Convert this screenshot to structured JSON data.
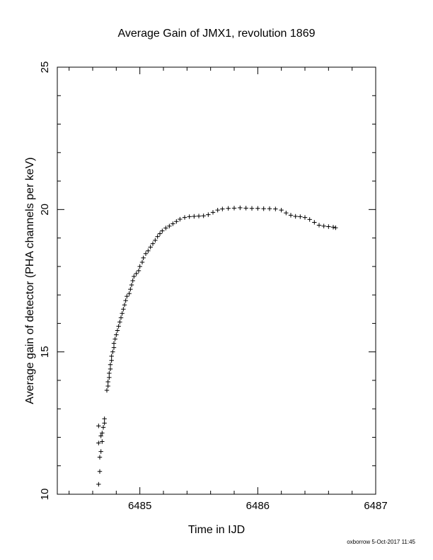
{
  "chart_data": {
    "type": "scatter",
    "title": "Average Gain of JMX1, revolution 1869",
    "xlabel": "Time in IJD",
    "ylabel": "Average gain of detector (PHA channels per keV)",
    "xlim": [
      6484.3,
      6487
    ],
    "ylim": [
      10,
      25
    ],
    "xticks": [
      "6485",
      "6486",
      "6487"
    ],
    "yticks": [
      "10",
      "15",
      "20",
      "25"
    ],
    "grid": false,
    "marker": "+",
    "footer": "oxborrow  5-Oct-2017 11:45",
    "points": [
      [
        6484.65,
        10.35
      ],
      [
        6484.66,
        10.8
      ],
      [
        6484.66,
        11.3
      ],
      [
        6484.67,
        11.5
      ],
      [
        6484.65,
        11.8
      ],
      [
        6484.68,
        11.85
      ],
      [
        6484.67,
        12.05
      ],
      [
        6484.68,
        12.15
      ],
      [
        6484.65,
        12.4
      ],
      [
        6484.69,
        12.35
      ],
      [
        6484.7,
        12.5
      ],
      [
        6484.7,
        12.65
      ],
      [
        6484.72,
        13.65
      ],
      [
        6484.73,
        13.8
      ],
      [
        6484.73,
        13.95
      ],
      [
        6484.74,
        14.1
      ],
      [
        6484.74,
        14.25
      ],
      [
        6484.75,
        14.4
      ],
      [
        6484.75,
        14.55
      ],
      [
        6484.76,
        14.7
      ],
      [
        6484.76,
        14.85
      ],
      [
        6484.77,
        15.0
      ],
      [
        6484.78,
        15.15
      ],
      [
        6484.78,
        15.3
      ],
      [
        6484.79,
        15.45
      ],
      [
        6484.8,
        15.6
      ],
      [
        6484.81,
        15.75
      ],
      [
        6484.82,
        15.9
      ],
      [
        6484.83,
        16.05
      ],
      [
        6484.84,
        16.2
      ],
      [
        6484.85,
        16.35
      ],
      [
        6484.86,
        16.5
      ],
      [
        6484.87,
        16.65
      ],
      [
        6484.88,
        16.8
      ],
      [
        6484.89,
        16.95
      ],
      [
        6484.91,
        17.05
      ],
      [
        6484.92,
        17.2
      ],
      [
        6484.93,
        17.35
      ],
      [
        6484.94,
        17.5
      ],
      [
        6484.95,
        17.65
      ],
      [
        6484.97,
        17.75
      ],
      [
        6484.99,
        17.85
      ],
      [
        6485.0,
        18.0
      ],
      [
        6485.02,
        18.15
      ],
      [
        6485.03,
        18.3
      ],
      [
        6485.05,
        18.45
      ],
      [
        6485.07,
        18.55
      ],
      [
        6485.09,
        18.68
      ],
      [
        6485.11,
        18.8
      ],
      [
        6485.13,
        18.92
      ],
      [
        6485.15,
        19.05
      ],
      [
        6485.17,
        19.15
      ],
      [
        6485.19,
        19.25
      ],
      [
        6485.22,
        19.35
      ],
      [
        6485.25,
        19.42
      ],
      [
        6485.28,
        19.5
      ],
      [
        6485.31,
        19.58
      ],
      [
        6485.34,
        19.66
      ],
      [
        6485.38,
        19.72
      ],
      [
        6485.42,
        19.75
      ],
      [
        6485.46,
        19.76
      ],
      [
        6485.5,
        19.77
      ],
      [
        6485.54,
        19.78
      ],
      [
        6485.58,
        19.82
      ],
      [
        6485.62,
        19.9
      ],
      [
        6485.66,
        19.98
      ],
      [
        6485.7,
        20.02
      ],
      [
        6485.75,
        20.04
      ],
      [
        6485.8,
        20.05
      ],
      [
        6485.85,
        20.06
      ],
      [
        6485.9,
        20.05
      ],
      [
        6485.95,
        20.04
      ],
      [
        6486.0,
        20.04
      ],
      [
        6486.05,
        20.03
      ],
      [
        6486.1,
        20.03
      ],
      [
        6486.15,
        20.02
      ],
      [
        6486.2,
        19.98
      ],
      [
        6486.24,
        19.88
      ],
      [
        6486.28,
        19.8
      ],
      [
        6486.32,
        19.76
      ],
      [
        6486.36,
        19.75
      ],
      [
        6486.4,
        19.72
      ],
      [
        6486.44,
        19.65
      ],
      [
        6486.48,
        19.55
      ],
      [
        6486.52,
        19.45
      ],
      [
        6486.56,
        19.42
      ],
      [
        6486.6,
        19.4
      ],
      [
        6486.64,
        19.38
      ],
      [
        6486.66,
        19.36
      ]
    ]
  }
}
